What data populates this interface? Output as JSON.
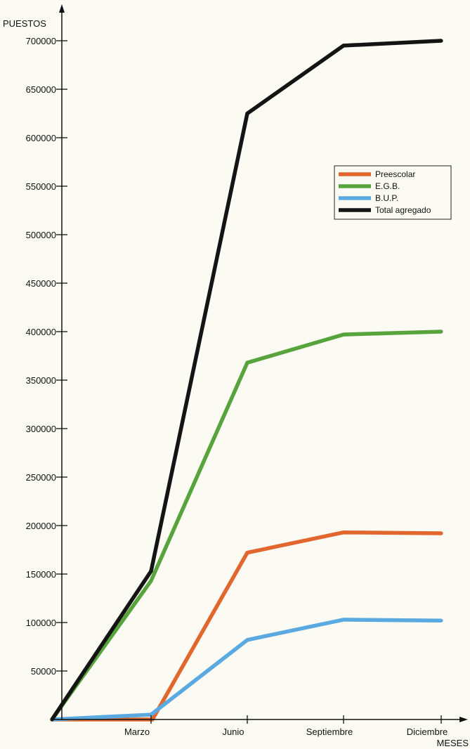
{
  "chart_data": {
    "type": "line",
    "ylabel": "PUESTOS",
    "xlabel": "MESES",
    "categories": [
      "",
      "Marzo",
      "Junio",
      "Septiembre",
      "Diciembre"
    ],
    "ylim": [
      0,
      700000
    ],
    "yticks": [
      50000,
      100000,
      150000,
      200000,
      250000,
      300000,
      350000,
      400000,
      450000,
      500000,
      550000,
      600000,
      650000,
      700000
    ],
    "yticklabels": [
      "50000",
      "100000",
      "150000",
      "200000",
      "250000",
      "300000",
      "350000",
      "400000",
      "450000",
      "500000",
      "550000",
      "600000",
      "650000",
      "700000"
    ],
    "grid": false,
    "legend_position": "right",
    "series": [
      {
        "name": "Preescolar",
        "color": "#e2672e",
        "values": [
          0,
          0,
          172000,
          193000,
          192000
        ]
      },
      {
        "name": "E.G.B.",
        "color": "#58a43c",
        "values": [
          0,
          143000,
          368000,
          397000,
          400000
        ]
      },
      {
        "name": "B.U.P.",
        "color": "#5aa9e0",
        "values": [
          0,
          5000,
          82000,
          103000,
          102000
        ]
      },
      {
        "name": "Total agregado",
        "color": "#141414",
        "values": [
          0,
          153000,
          625000,
          695000,
          700000
        ]
      }
    ]
  }
}
